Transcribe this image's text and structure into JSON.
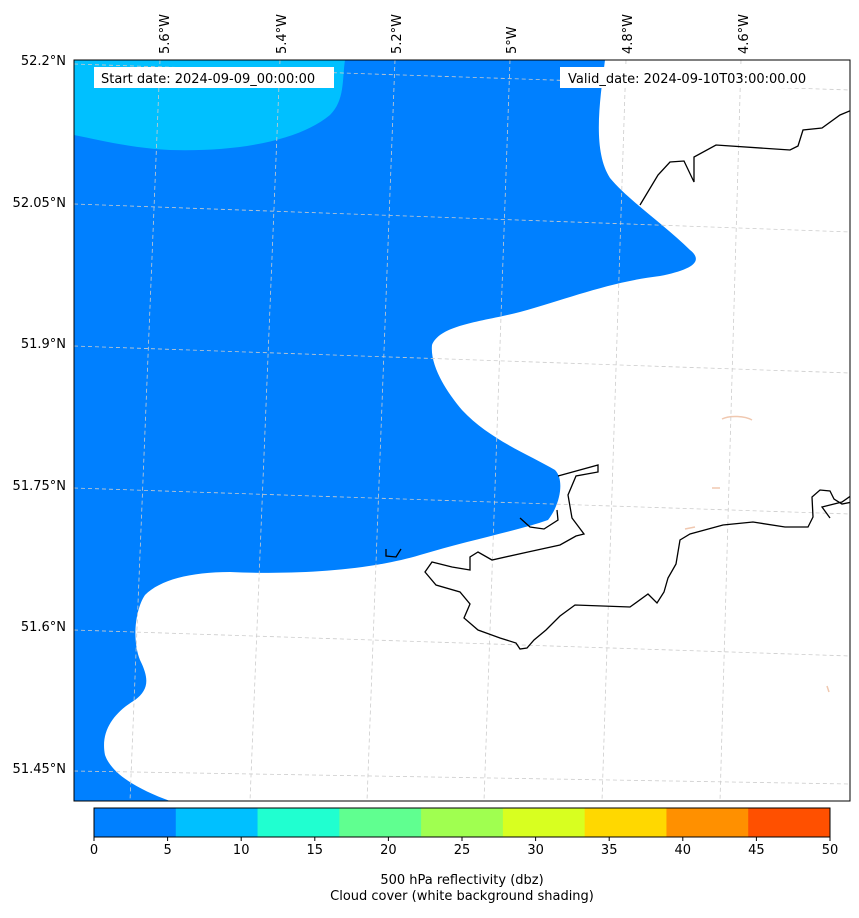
{
  "map": {
    "start_label": "Start date: 2024-09-09_00:00:00",
    "valid_label": "Valid_date: 2024-09-10T03:00:00.00",
    "lon_labels": [
      "5.6°W",
      "5.4°W",
      "5.2°W",
      "5°W",
      "4.8°W",
      "4.6°W"
    ],
    "lat_labels": [
      "52.2°N",
      "52.05°N",
      "51.9°N",
      "51.75°N",
      "51.6°N",
      "51.45°N"
    ],
    "field": "reflectivity",
    "colors": {
      "band_0_10": "#0080ff",
      "band_10_15": "#00c0ff",
      "coastline": "#000000",
      "grid": "#cccccc"
    }
  },
  "colorbar": {
    "ticks": [
      "0",
      "5",
      "10",
      "15",
      "20",
      "25",
      "30",
      "35",
      "40",
      "45",
      "50"
    ],
    "colors": [
      "#0080ff",
      "#00c0ff",
      "#20ffd0",
      "#60ff90",
      "#a0ff50",
      "#d8ff20",
      "#ffd800",
      "#ff9000",
      "#ff5000"
    ],
    "label_line1": "500 hPa reflectivity (dbz)",
    "label_line2": "Cloud cover (white background shading)"
  }
}
